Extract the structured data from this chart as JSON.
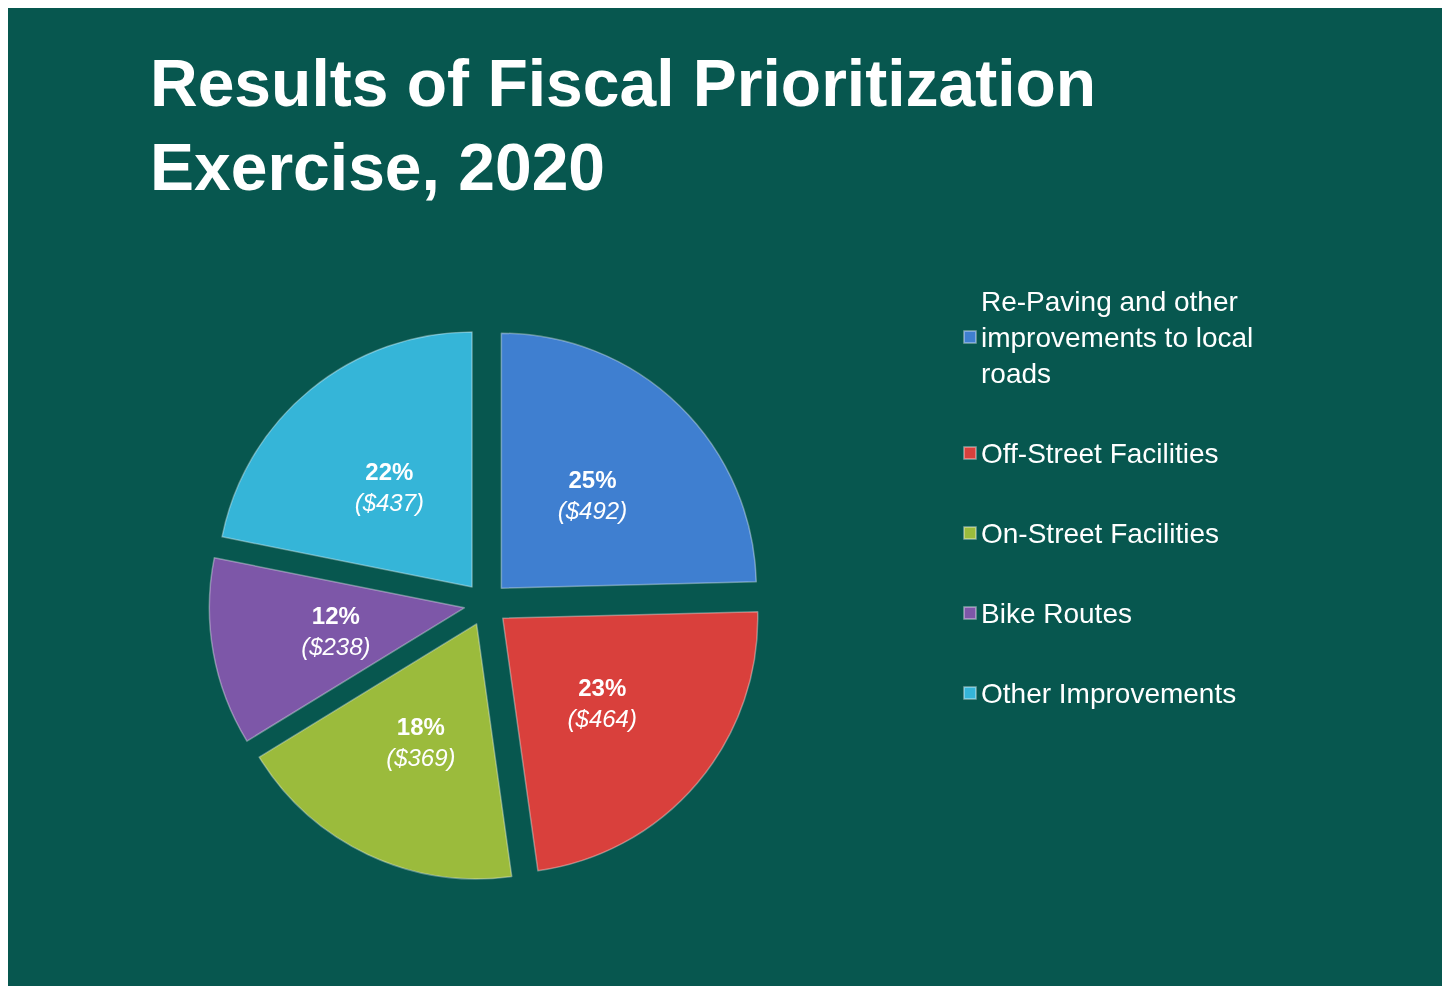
{
  "chart_data": {
    "type": "pie",
    "title": "Results of Fiscal Prioritization Exercise, 2020",
    "categories": [
      "Re-Paving and other improvements to local roads",
      "Off-Street Facilities",
      "On-Street Facilities",
      "Bike Routes",
      "Other Improvements"
    ],
    "values": [
      492,
      464,
      369,
      238,
      437
    ],
    "value_labels": [
      "25%\n($492)",
      "23%\n($464)",
      "18%\n($369)",
      "12%\n($238)",
      "22%\n($437)"
    ],
    "colors": [
      "#3f7fd0",
      "#d9403c",
      "#9bbb3c",
      "#7d57a8",
      "#35b5d8"
    ],
    "legend": "right"
  }
}
